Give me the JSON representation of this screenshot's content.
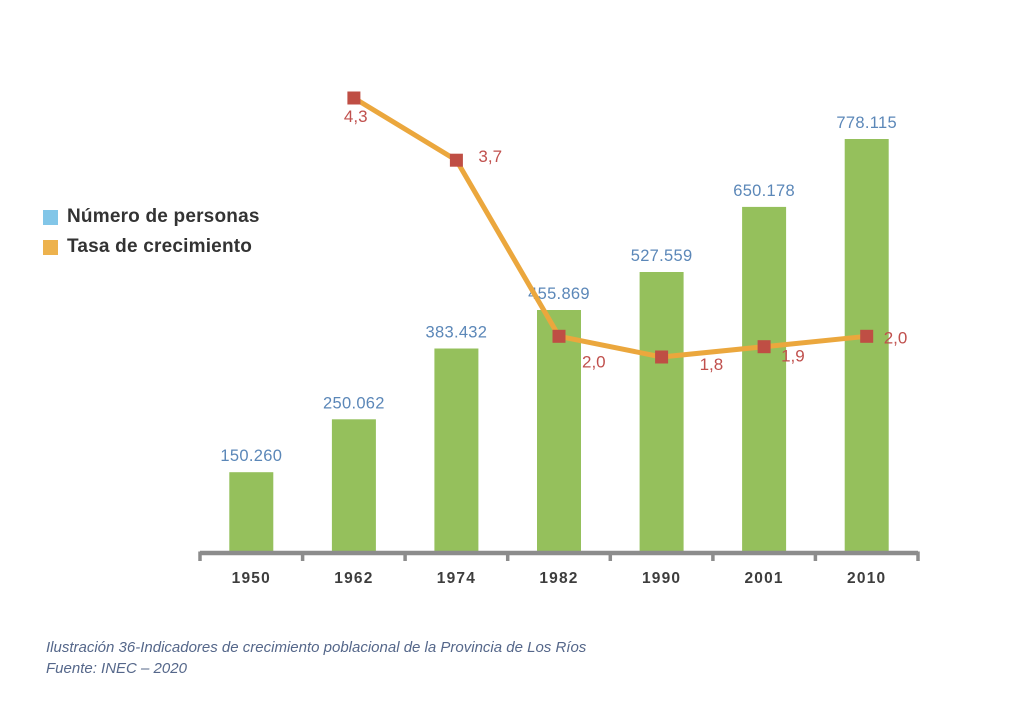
{
  "legend": {
    "items": [
      {
        "label": "Número de personas",
        "color": "#82c6e8"
      },
      {
        "label": "Tasa de crecimiento",
        "color": "#edb24d"
      }
    ]
  },
  "chart_data": {
    "type": "bar+line",
    "title": "",
    "xlabel": "",
    "ylabel": "",
    "categories": [
      "1950",
      "1962",
      "1974",
      "1982",
      "1990",
      "2001",
      "2010"
    ],
    "series": [
      {
        "name": "Número de personas",
        "type": "bar",
        "color": "#95c05c",
        "label_color": "#5b87b8",
        "values": [
          150260,
          250062,
          383432,
          455869,
          527559,
          650178,
          778115
        ],
        "labels": [
          "150.260",
          "250.062",
          "383.432",
          "455.869",
          "527.559",
          "650.178",
          "778.115"
        ]
      },
      {
        "name": "Tasa de crecimiento",
        "type": "line",
        "color": "#eba73d",
        "marker": "square",
        "marker_color": "#bf4e44",
        "label_color": "#c0504d",
        "x_categories": [
          "1962",
          "1974",
          "1982",
          "1990",
          "2001",
          "2010"
        ],
        "values": [
          4.3,
          3.7,
          2.0,
          1.8,
          1.9,
          2.0
        ],
        "labels": [
          "4,3",
          "3,7",
          "2,0",
          "1,8",
          "1,9",
          "2,0"
        ],
        "label_offsets": [
          [
            -10,
            24
          ],
          [
            22,
            2
          ],
          [
            23,
            31
          ],
          [
            38,
            13
          ],
          [
            17,
            15
          ],
          [
            17,
            7
          ]
        ]
      }
    ],
    "ylim_bars": [
      0,
      778115
    ],
    "ylim_rate": [
      0,
      4.4
    ],
    "gridlines": false,
    "legend_position": "middle-left",
    "axis_color": "#8c8c8c"
  },
  "caption": {
    "line1": "Ilustración 36-Indicadores de crecimiento poblacional de la Provincia de Los Ríos",
    "line2": "Fuente: INEC – 2020"
  }
}
